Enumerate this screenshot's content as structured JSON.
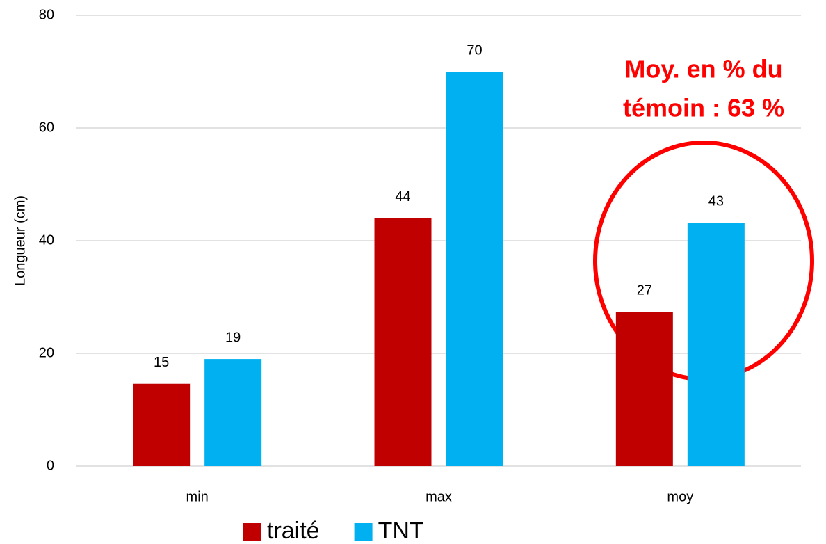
{
  "chart_data": {
    "type": "bar",
    "y_label": "Longueur (cm)",
    "categories": [
      "min",
      "max",
      "moy"
    ],
    "series": [
      {
        "name": "traité",
        "color": "#c00000",
        "values": [
          14.6,
          44,
          27.4
        ],
        "value_labels": [
          "15",
          "44",
          "27"
        ]
      },
      {
        "name": "TNT",
        "color": "#00b0f0",
        "values": [
          19,
          70,
          43.2
        ],
        "value_labels": [
          "19",
          "70",
          "43"
        ]
      }
    ],
    "ylim": [
      0,
      80
    ],
    "yticks": [
      0,
      20,
      40,
      60,
      80
    ],
    "grid": true,
    "annotation": [
      "Moy. en % du",
      "témoin : 63 %"
    ]
  }
}
